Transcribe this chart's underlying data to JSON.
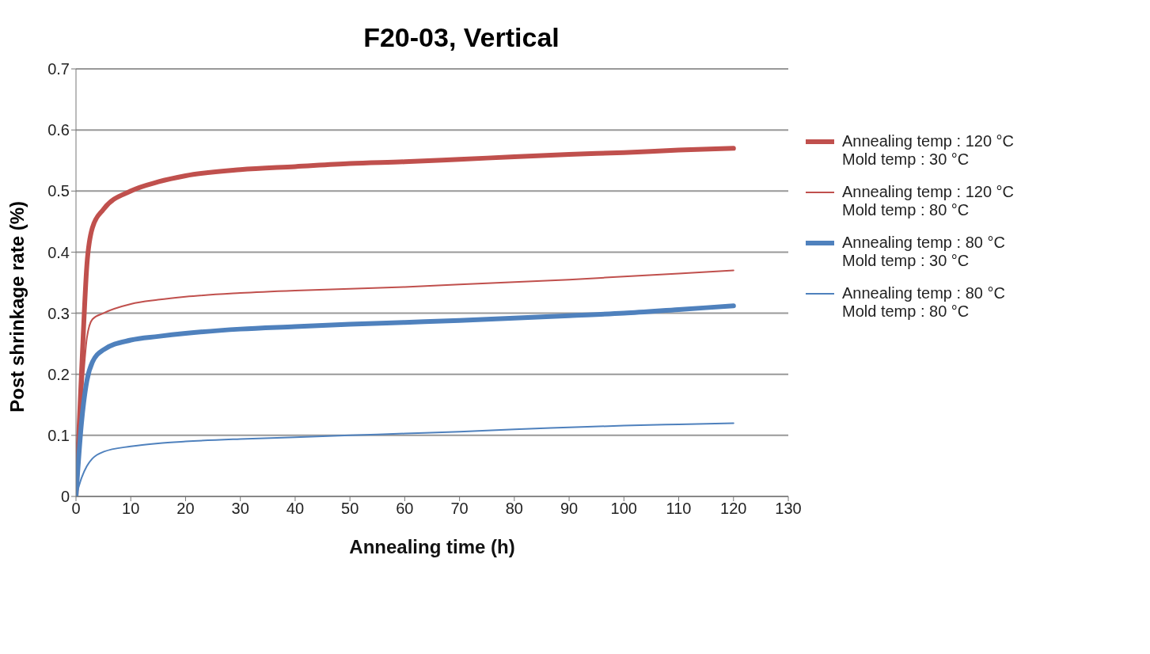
{
  "chart_data": {
    "type": "line",
    "title": "F20-03, Vertical",
    "xlabel": "Annealing time (h)",
    "ylabel": "Post shrinkage rate (%)",
    "x": [
      0,
      1,
      2,
      3,
      5,
      10,
      15,
      20,
      30,
      40,
      50,
      60,
      70,
      80,
      90,
      100,
      110,
      120
    ],
    "series": [
      {
        "name": "Annealing temp : 120 °C\nMold temp : 30 °C",
        "color": "#c0504d",
        "values": [
          0,
          0.2,
          0.38,
          0.44,
          0.47,
          0.5,
          0.515,
          0.525,
          0.535,
          0.54,
          0.545,
          0.548,
          0.552,
          0.556,
          0.56,
          0.563,
          0.567,
          0.57
        ]
      },
      {
        "name": "Annealing temp : 120 °C\nMold temp : 80 °C",
        "color": "#c0504d",
        "values": [
          0,
          0.15,
          0.26,
          0.29,
          0.3,
          0.315,
          0.322,
          0.327,
          0.333,
          0.337,
          0.34,
          0.343,
          0.347,
          0.351,
          0.355,
          0.36,
          0.365,
          0.37
        ]
      },
      {
        "name": "Annealing temp : 80 °C\nMold temp : 30 °C",
        "color": "#4f81bd",
        "values": [
          0,
          0.12,
          0.19,
          0.22,
          0.24,
          0.256,
          0.262,
          0.267,
          0.274,
          0.278,
          0.282,
          0.285,
          0.288,
          0.292,
          0.296,
          0.3,
          0.306,
          0.312
        ]
      },
      {
        "name": "Annealing temp : 80 °C\nMold temp : 80 °C",
        "color": "#4f81bd",
        "values": [
          0,
          0.03,
          0.05,
          0.062,
          0.073,
          0.082,
          0.087,
          0.09,
          0.094,
          0.097,
          0.1,
          0.103,
          0.106,
          0.11,
          0.113,
          0.116,
          0.118,
          0.12
        ]
      }
    ],
    "xlim": [
      0,
      130
    ],
    "xticks": [
      0,
      10,
      20,
      30,
      40,
      50,
      60,
      70,
      80,
      90,
      100,
      110,
      120,
      130
    ],
    "ylim": [
      0,
      0.7
    ],
    "yticks": [
      0,
      0.1,
      0.2,
      0.3,
      0.4,
      0.5,
      0.6,
      0.7
    ],
    "grid": "y",
    "legend": "right",
    "marker": "none",
    "line_style": "solid"
  }
}
